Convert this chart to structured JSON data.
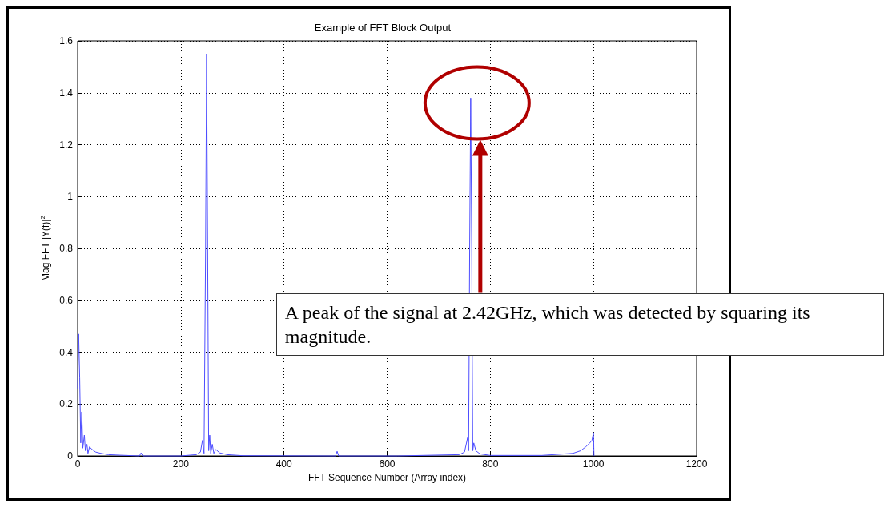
{
  "chart_data": {
    "type": "line",
    "title": "Example of FFT Block Output",
    "xlabel": "FFT Sequence Number (Array index)",
    "ylabel": "Mag FFT |Y(f)|$^{2}$",
    "xlim": [
      0,
      1200
    ],
    "xticks": [
      0,
      200,
      400,
      600,
      800,
      1000,
      1200
    ],
    "ylim": [
      0,
      1.6
    ],
    "yticks": [
      0,
      0.2,
      0.4,
      0.6,
      0.8,
      1,
      1.2,
      1.4,
      1.6
    ],
    "grid": true,
    "marker": "none",
    "line_style": "solid",
    "series": [
      {
        "color": "#4d4dff",
        "x": [
          0,
          2,
          4,
          6,
          8,
          10,
          13,
          15,
          18,
          20,
          23,
          28,
          35,
          45,
          60,
          80,
          120,
          123,
          126,
          200,
          230,
          238,
          242,
          245,
          248,
          250,
          252,
          254,
          256,
          258,
          261,
          264,
          268,
          275,
          290,
          320,
          500,
          503,
          506,
          620,
          740,
          750,
          756,
          758,
          760,
          762,
          764,
          766,
          768,
          772,
          780,
          800,
          900,
          960,
          975,
          985,
          993,
          997,
          1000,
          1001
        ],
        "values": [
          0.26,
          0.47,
          0.3,
          0.05,
          0.17,
          0.03,
          0.08,
          0.02,
          0.045,
          0.01,
          0.035,
          0.025,
          0.015,
          0.01,
          0.005,
          0.003,
          0,
          0.012,
          0,
          0,
          0.005,
          0.015,
          0.06,
          0.01,
          0.8,
          1.55,
          0.8,
          0.02,
          0.08,
          0.01,
          0.045,
          0.01,
          0.025,
          0.012,
          0.005,
          0.001,
          0,
          0.018,
          0,
          0,
          0.005,
          0.015,
          0.07,
          0.02,
          0.8,
          1.38,
          0.8,
          0.02,
          0.05,
          0.02,
          0.008,
          0.002,
          0.002,
          0.01,
          0.02,
          0.035,
          0.05,
          0.06,
          0.09,
          0
        ]
      }
    ],
    "annotations": [
      "A peak of the signal at 2.42GHz, which was detected by squaring its magnitude."
    ]
  }
}
